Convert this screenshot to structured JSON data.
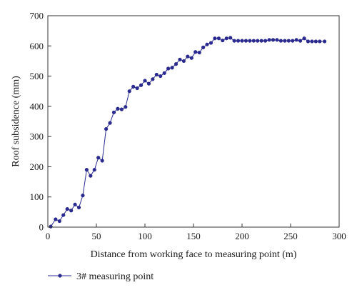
{
  "chart_data": {
    "type": "line",
    "xlabel": "Distance from working face to measuring point (m)",
    "ylabel": "Roof subsidence (mm)",
    "xlim": [
      0,
      300
    ],
    "ylim": [
      0,
      700
    ],
    "xticks": [
      0,
      50,
      100,
      150,
      200,
      250,
      300
    ],
    "yticks": [
      0,
      100,
      200,
      300,
      400,
      500,
      600,
      700
    ],
    "legend_position": "bottom-left",
    "series": [
      {
        "name": "3# measuring point",
        "color": "#2b2b8f",
        "x": [
          3,
          8,
          12,
          16,
          20,
          24,
          28,
          32,
          36,
          40,
          44,
          48,
          52,
          56,
          60,
          64,
          68,
          72,
          76,
          80,
          84,
          88,
          92,
          96,
          100,
          104,
          108,
          112,
          116,
          120,
          124,
          128,
          132,
          136,
          140,
          144,
          148,
          152,
          156,
          160,
          164,
          168,
          172,
          176,
          180,
          184,
          188,
          192,
          196,
          200,
          204,
          208,
          212,
          216,
          220,
          224,
          228,
          232,
          236,
          240,
          244,
          248,
          252,
          256,
          260,
          264,
          268,
          272,
          276,
          280,
          285
        ],
        "y": [
          2,
          26,
          20,
          40,
          60,
          55,
          75,
          65,
          105,
          190,
          170,
          190,
          230,
          220,
          325,
          345,
          380,
          392,
          390,
          398,
          450,
          465,
          460,
          470,
          485,
          475,
          490,
          505,
          500,
          510,
          525,
          528,
          540,
          555,
          550,
          565,
          560,
          580,
          578,
          595,
          605,
          610,
          625,
          625,
          618,
          625,
          627,
          617,
          617,
          617,
          617,
          617,
          617,
          617,
          617,
          617,
          620,
          620,
          620,
          617,
          617,
          617,
          617,
          620,
          617,
          625,
          615,
          615,
          615,
          615,
          615
        ]
      }
    ]
  }
}
